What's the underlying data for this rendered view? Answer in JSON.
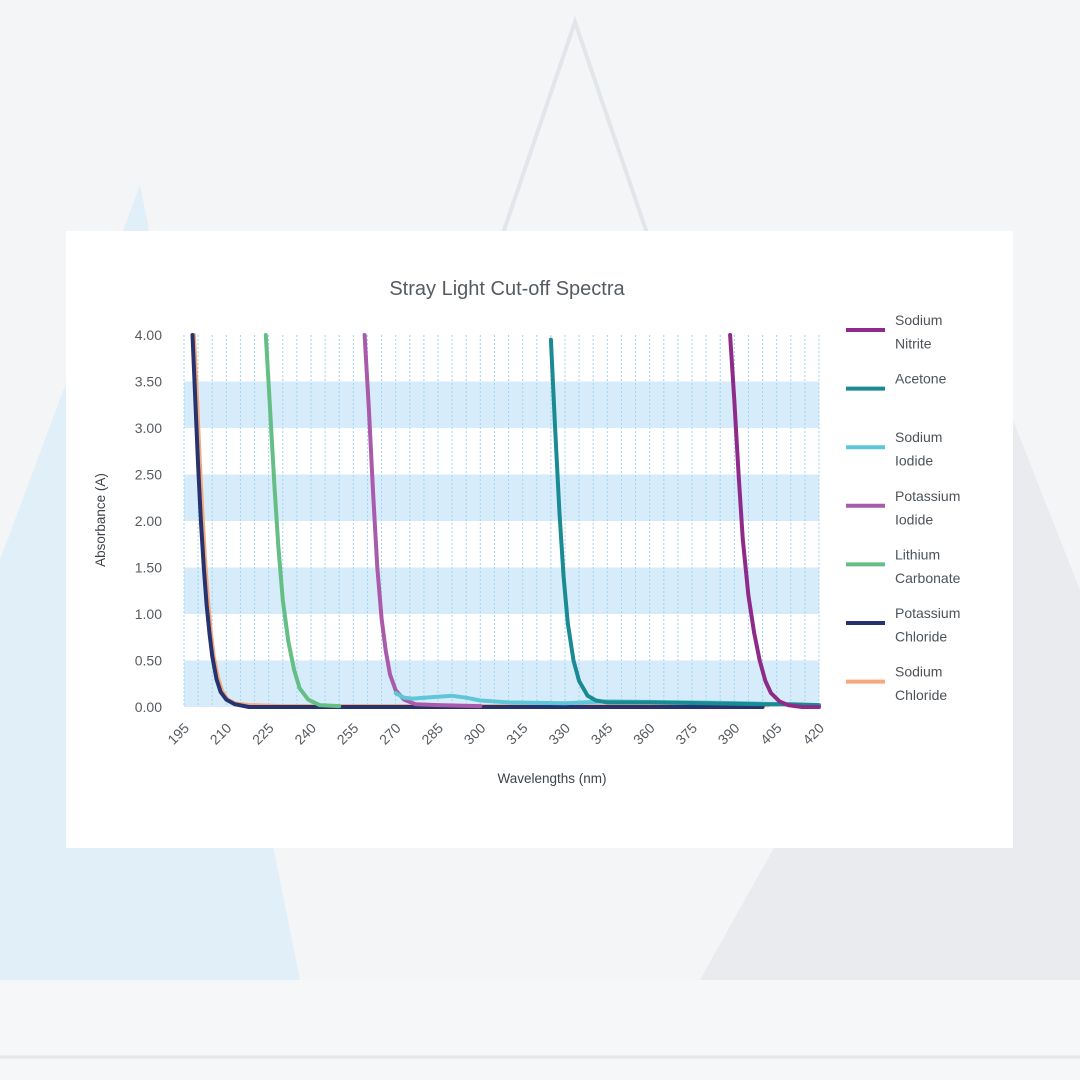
{
  "chart_data": {
    "type": "line",
    "title": "Stray Light Cut-off Spectra",
    "xlabel": "Wavelengths (nm)",
    "ylabel": "Absorbance (A)",
    "xlim": [
      195,
      420
    ],
    "ylim": [
      0,
      4
    ],
    "x_ticks": [
      "195",
      "210",
      "225",
      "240",
      "255",
      "270",
      "285",
      "300",
      "315",
      "330",
      "345",
      "360",
      "375",
      "390",
      "405",
      "420"
    ],
    "y_ticks": [
      "0.00",
      "0.50",
      "1.00",
      "1.50",
      "2.00",
      "2.50",
      "3.00",
      "3.50",
      "4.00"
    ],
    "grid": true,
    "legend_position": "right",
    "series": [
      {
        "name_lines": [
          "Sodium",
          "Nitrite"
        ],
        "color": "#8e2b8a",
        "points": [
          [
            388.5,
            4.0
          ],
          [
            390,
            3.3
          ],
          [
            391.5,
            2.5
          ],
          [
            393,
            1.8
          ],
          [
            395,
            1.2
          ],
          [
            397,
            0.8
          ],
          [
            399,
            0.5
          ],
          [
            401,
            0.28
          ],
          [
            403,
            0.15
          ],
          [
            406,
            0.06
          ],
          [
            409,
            0.02
          ],
          [
            414,
            0.0
          ],
          [
            420,
            0.0
          ]
        ]
      },
      {
        "name_lines": [
          "Acetone"
        ],
        "color": "#1a8b93",
        "points": [
          [
            325,
            3.95
          ],
          [
            326.5,
            3.0
          ],
          [
            328,
            2.1
          ],
          [
            329.5,
            1.4
          ],
          [
            331,
            0.9
          ],
          [
            333,
            0.5
          ],
          [
            335,
            0.28
          ],
          [
            338,
            0.12
          ],
          [
            341,
            0.07
          ],
          [
            345,
            0.05
          ],
          [
            360,
            0.05
          ],
          [
            380,
            0.04
          ],
          [
            400,
            0.03
          ],
          [
            410,
            0.03
          ],
          [
            420,
            0.02
          ]
        ]
      },
      {
        "name_lines": [
          "Sodium",
          "Iodide"
        ],
        "color": "#5ec6d9",
        "points": [
          [
            270,
            0.15
          ],
          [
            273,
            0.1
          ],
          [
            276,
            0.09
          ],
          [
            280,
            0.1
          ],
          [
            285,
            0.11
          ],
          [
            290,
            0.12
          ],
          [
            295,
            0.1
          ],
          [
            300,
            0.07
          ],
          [
            310,
            0.05
          ],
          [
            330,
            0.04
          ],
          [
            345,
            0.06
          ],
          [
            375,
            0.05
          ],
          [
            395,
            0.04
          ],
          [
            405,
            0.03
          ]
        ]
      },
      {
        "name_lines": [
          "Potassium",
          "Iodide"
        ],
        "color": "#a95aaa",
        "points": [
          [
            259,
            4.0
          ],
          [
            260.5,
            3.2
          ],
          [
            262,
            2.3
          ],
          [
            263.5,
            1.5
          ],
          [
            265,
            0.95
          ],
          [
            266.5,
            0.6
          ],
          [
            268,
            0.35
          ],
          [
            270,
            0.18
          ],
          [
            273,
            0.08
          ],
          [
            277,
            0.03
          ],
          [
            285,
            0.02
          ],
          [
            300,
            0.01
          ]
        ]
      },
      {
        "name_lines": [
          "Lithium",
          "Carbonate"
        ],
        "color": "#65bf85",
        "points": [
          [
            224,
            4.0
          ],
          [
            225.5,
            3.2
          ],
          [
            227,
            2.4
          ],
          [
            228.5,
            1.7
          ],
          [
            230,
            1.15
          ],
          [
            232,
            0.7
          ],
          [
            234,
            0.4
          ],
          [
            236,
            0.2
          ],
          [
            239,
            0.08
          ],
          [
            243,
            0.02
          ],
          [
            250,
            0.01
          ]
        ]
      },
      {
        "name_lines": [
          "Potassium",
          "Chloride"
        ],
        "color": "#27336e",
        "points": [
          [
            198,
            4.0
          ],
          [
            199,
            3.3
          ],
          [
            200,
            2.6
          ],
          [
            201,
            2.0
          ],
          [
            202,
            1.5
          ],
          [
            203,
            1.1
          ],
          [
            204,
            0.8
          ],
          [
            205,
            0.55
          ],
          [
            206.5,
            0.3
          ],
          [
            208,
            0.16
          ],
          [
            210,
            0.08
          ],
          [
            213,
            0.03
          ],
          [
            218,
            0.0
          ],
          [
            240,
            0.0
          ],
          [
            260,
            0.0
          ],
          [
            280,
            0.0
          ],
          [
            300,
            0.0
          ],
          [
            340,
            0.0
          ],
          [
            380,
            0.0
          ],
          [
            400,
            0.0
          ]
        ]
      },
      {
        "name_lines": [
          "Sodium",
          "Chloride"
        ],
        "color": "#f6a87a",
        "points": [
          [
            198.5,
            4.0
          ],
          [
            199.5,
            3.4
          ],
          [
            200.5,
            2.7
          ],
          [
            201.5,
            2.1
          ],
          [
            202.5,
            1.55
          ],
          [
            203.5,
            1.15
          ],
          [
            204.5,
            0.8
          ],
          [
            205.5,
            0.55
          ],
          [
            207,
            0.32
          ],
          [
            208.5,
            0.17
          ],
          [
            210.5,
            0.08
          ],
          [
            213,
            0.04
          ],
          [
            218,
            0.02
          ],
          [
            230,
            0.01
          ],
          [
            250,
            0.01
          ],
          [
            300,
            0.01
          ],
          [
            350,
            0.01
          ],
          [
            400,
            0.02
          ],
          [
            402,
            0.02
          ]
        ]
      }
    ]
  }
}
